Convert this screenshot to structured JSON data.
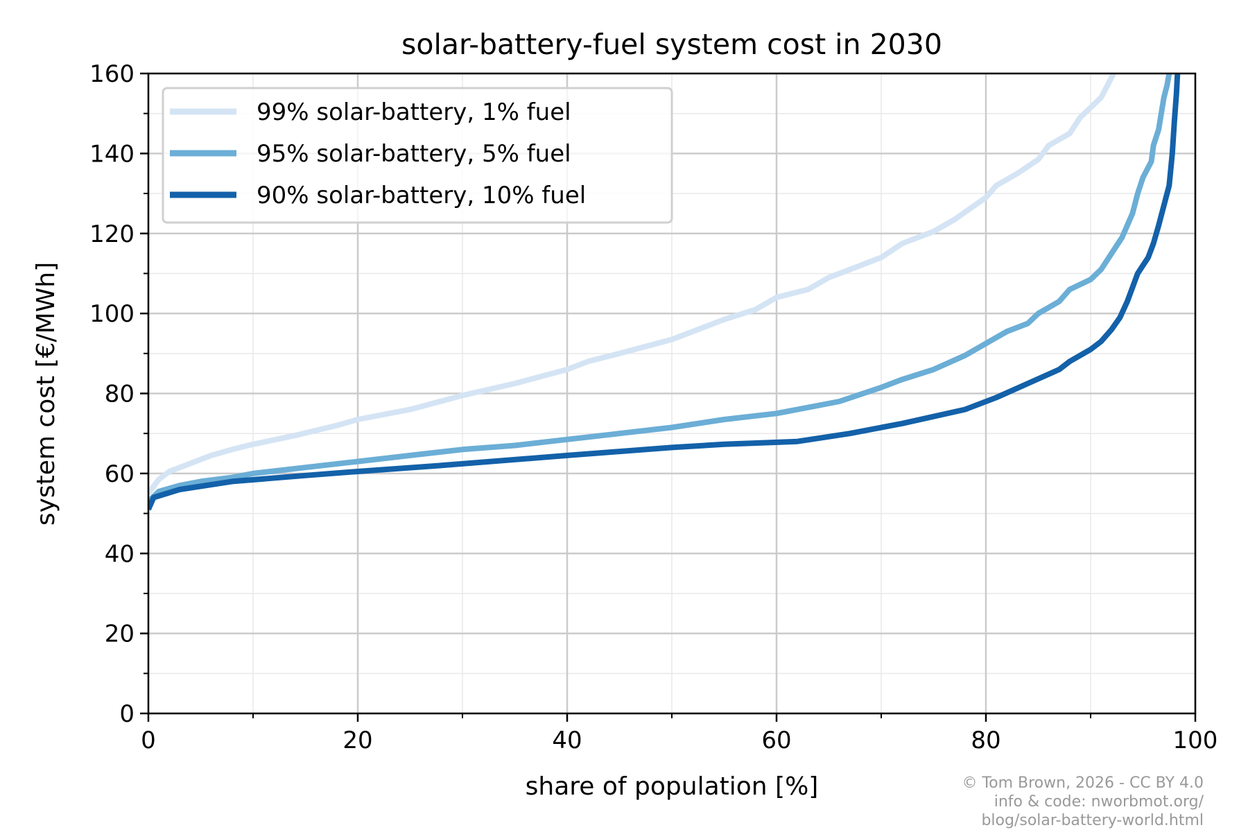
{
  "chart_data": {
    "type": "line",
    "title": "solar-battery-fuel system cost in 2030",
    "xlabel": "share of population [%]",
    "ylabel": "system cost [€/MWh]",
    "xlim": [
      0,
      100
    ],
    "ylim": [
      0,
      160
    ],
    "xticks": [
      0,
      20,
      40,
      60,
      80,
      100
    ],
    "yticks": [
      0,
      20,
      40,
      60,
      80,
      100,
      120,
      140,
      160
    ],
    "grid": true,
    "minor_grid": true,
    "legend_position": "top-left",
    "series": [
      {
        "name": "99% solar-battery, 1% fuel",
        "color": "#d4e4f4",
        "x": [
          0,
          1,
          2,
          4,
          6,
          8,
          10,
          14,
          18,
          20,
          25,
          30,
          35,
          40,
          42,
          45,
          50,
          55,
          58,
          60,
          63,
          65,
          67,
          70,
          72,
          75,
          77,
          80,
          81,
          83,
          85,
          86,
          88,
          89,
          91,
          92,
          92.2
        ],
        "y": [
          55,
          58.5,
          60.5,
          62.5,
          64.5,
          66,
          67.3,
          69.5,
          72,
          73.5,
          76,
          79.5,
          82.5,
          86,
          88,
          90,
          93.5,
          98.5,
          101,
          104,
          106,
          109,
          111,
          114,
          117.5,
          120.5,
          123.5,
          129,
          132,
          135,
          138.5,
          142,
          145,
          149,
          154,
          159,
          160
        ]
      },
      {
        "name": "95% solar-battery, 5% fuel",
        "color": "#6baed6",
        "x": [
          0,
          1,
          3,
          5,
          8,
          10,
          15,
          20,
          25,
          30,
          35,
          40,
          45,
          50,
          55,
          60,
          63,
          66,
          70,
          72,
          75,
          78,
          80,
          82,
          84,
          85,
          87,
          88,
          90,
          91,
          92,
          93,
          94,
          94.5,
          95,
          95.8,
          96,
          96.5,
          97,
          97.3,
          97.5
        ],
        "y": [
          53,
          55.5,
          57,
          58,
          59,
          60,
          61.5,
          63,
          64.5,
          66,
          67,
          68.5,
          70,
          71.5,
          73.5,
          75,
          76.5,
          78,
          81.5,
          83.5,
          86,
          89.5,
          92.5,
          95.5,
          97.5,
          100,
          103,
          106,
          108.5,
          111,
          115,
          119,
          125,
          130,
          134,
          138,
          142,
          146,
          154,
          157,
          160
        ]
      },
      {
        "name": "90% solar-battery, 10% fuel",
        "color": "#1361a9",
        "x": [
          0,
          0.5,
          3,
          8,
          15,
          20,
          28,
          40,
          50,
          55,
          62,
          67,
          72,
          78,
          81,
          84,
          87,
          88,
          90,
          91,
          92,
          92.8,
          93.5,
          94,
          94.5,
          95.5,
          96,
          96.5,
          97,
          97.5,
          97.8,
          98,
          98.2,
          98.3
        ],
        "y": [
          51,
          54,
          56,
          58,
          59.5,
          60.5,
          62,
          64.5,
          66.5,
          67.3,
          68,
          70,
          72.5,
          76,
          79,
          82.5,
          86,
          88,
          91,
          93,
          96,
          99,
          103,
          106.5,
          110,
          114,
          117.5,
          122,
          127,
          132,
          140,
          148,
          155,
          160
        ]
      }
    ]
  },
  "credit": {
    "line1": "© Tom Brown, 2026 - CC BY 4.0",
    "line2": "info & code: nworbmot.org/",
    "line3": "blog/solar-battery-world.html"
  }
}
